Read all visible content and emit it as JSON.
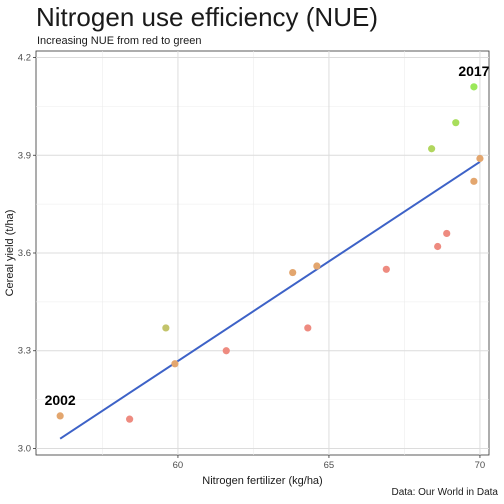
{
  "chart_data": {
    "type": "scatter",
    "title": "Nitrogen use efficiency (NUE)",
    "subtitle": "Increasing NUE from red to green",
    "caption": "Data: Our World in Data",
    "xlabel": "Nitrogen fertilizer (kg/ha)",
    "ylabel": "Cereal yield (t/ha)",
    "xlim": [
      55.3,
      70.3
    ],
    "ylim": [
      2.98,
      4.22
    ],
    "x_ticks": [
      60,
      65,
      70
    ],
    "y_ticks": [
      3.0,
      3.3,
      3.6,
      3.9,
      4.2
    ],
    "x_tick_labels": [
      "60",
      "65",
      "70"
    ],
    "y_tick_labels": [
      "3.0",
      "3.3",
      "3.6",
      "3.9",
      "4.2"
    ],
    "grid": true,
    "legend": "none",
    "points": [
      {
        "x": 56.1,
        "y": 3.1,
        "color": "#e3a66e"
      },
      {
        "x": 58.4,
        "y": 3.09,
        "color": "#ee8b80"
      },
      {
        "x": 59.6,
        "y": 3.37,
        "color": "#c3c46b"
      },
      {
        "x": 59.9,
        "y": 3.26,
        "color": "#e3a66e"
      },
      {
        "x": 61.6,
        "y": 3.3,
        "color": "#ee8b80"
      },
      {
        "x": 63.8,
        "y": 3.54,
        "color": "#e3a66e"
      },
      {
        "x": 64.3,
        "y": 3.37,
        "color": "#ee8b80"
      },
      {
        "x": 64.6,
        "y": 3.56,
        "color": "#e3a66e"
      },
      {
        "x": 66.9,
        "y": 3.55,
        "color": "#ee8b80"
      },
      {
        "x": 68.4,
        "y": 3.92,
        "color": "#b1d65e"
      },
      {
        "x": 68.6,
        "y": 3.62,
        "color": "#ee8b80"
      },
      {
        "x": 68.9,
        "y": 3.66,
        "color": "#ee8b80"
      },
      {
        "x": 69.2,
        "y": 4.0,
        "color": "#a8de5c"
      },
      {
        "x": 69.8,
        "y": 3.82,
        "color": "#e3a66e"
      },
      {
        "x": 69.8,
        "y": 4.11,
        "color": "#9be85a"
      },
      {
        "x": 70.0,
        "y": 3.89,
        "color": "#e3a66e"
      }
    ],
    "trend_line": {
      "x": [
        56.1,
        70.0
      ],
      "y": [
        3.03,
        3.88
      ],
      "color": "#3d62c7"
    },
    "annotations": [
      {
        "text": "2002",
        "x": 56.1,
        "y": 3.1
      },
      {
        "text": "2017",
        "x": 69.8,
        "y": 4.11
      }
    ]
  }
}
